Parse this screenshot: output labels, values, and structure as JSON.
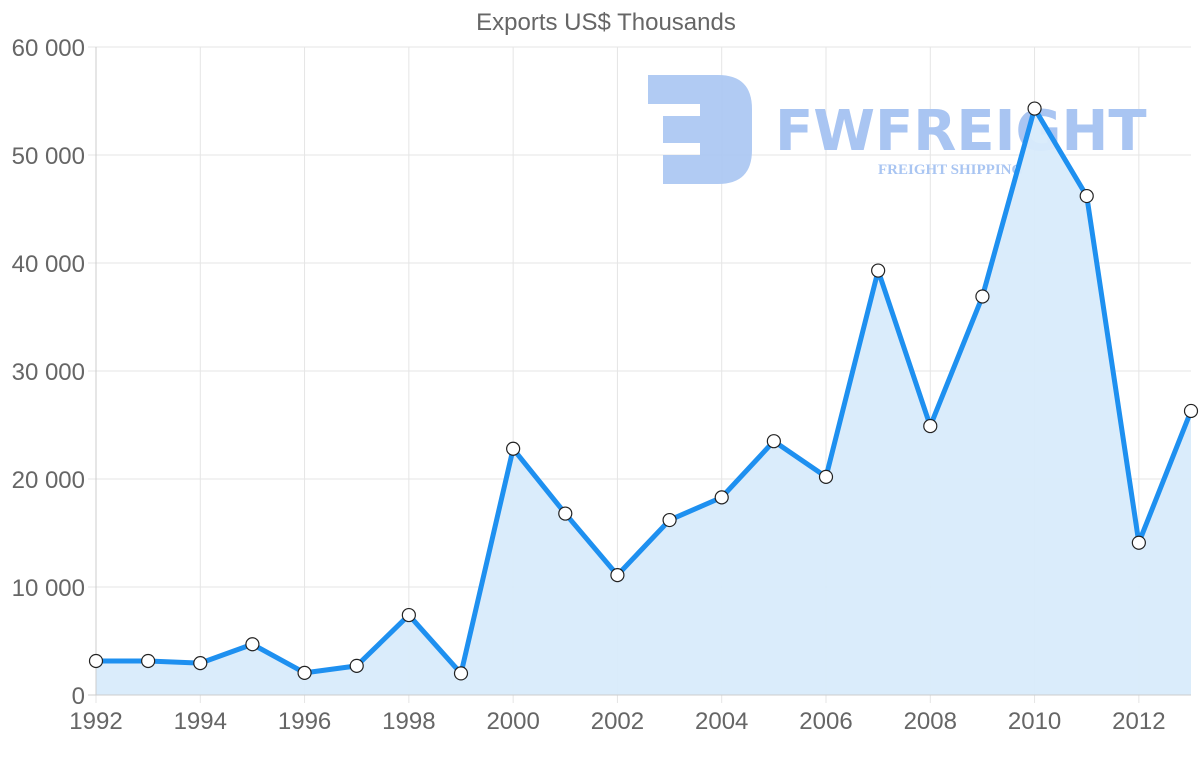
{
  "chart_data": {
    "type": "line",
    "title": "Exports US$ Thousands",
    "xlabel": "",
    "ylabel": "",
    "x": [
      1992,
      1993,
      1994,
      1995,
      1996,
      1997,
      1998,
      1999,
      2000,
      2001,
      2002,
      2003,
      2004,
      2005,
      2006,
      2007,
      2008,
      2009,
      2010,
      2011,
      2012,
      2013
    ],
    "series": [
      {
        "name": "Exports US$ Thousands",
        "values": [
          3150,
          3150,
          2950,
          4700,
          2050,
          2700,
          7400,
          2000,
          22800,
          16800,
          11100,
          16200,
          18300,
          23500,
          20200,
          39300,
          24900,
          36900,
          54300,
          46200,
          14100,
          26300
        ],
        "color": "#1e90f0",
        "fill": "#d8ebfb"
      }
    ],
    "x_tick_labels": [
      "1992",
      "1994",
      "1996",
      "1998",
      "2000",
      "2002",
      "2004",
      "2006",
      "2008",
      "2010",
      "2012"
    ],
    "y_tick_labels": [
      "0",
      "10 000",
      "20 000",
      "30 000",
      "40 000",
      "50 000",
      "60 000"
    ],
    "ylim": [
      0,
      60000
    ],
    "xlim": [
      1992,
      2013
    ],
    "grid": true,
    "legend": "none"
  },
  "watermark": {
    "brand": "FWFREIGHT",
    "tagline": "FREIGHT SHIPPING",
    "color": "#a9c5f2"
  }
}
